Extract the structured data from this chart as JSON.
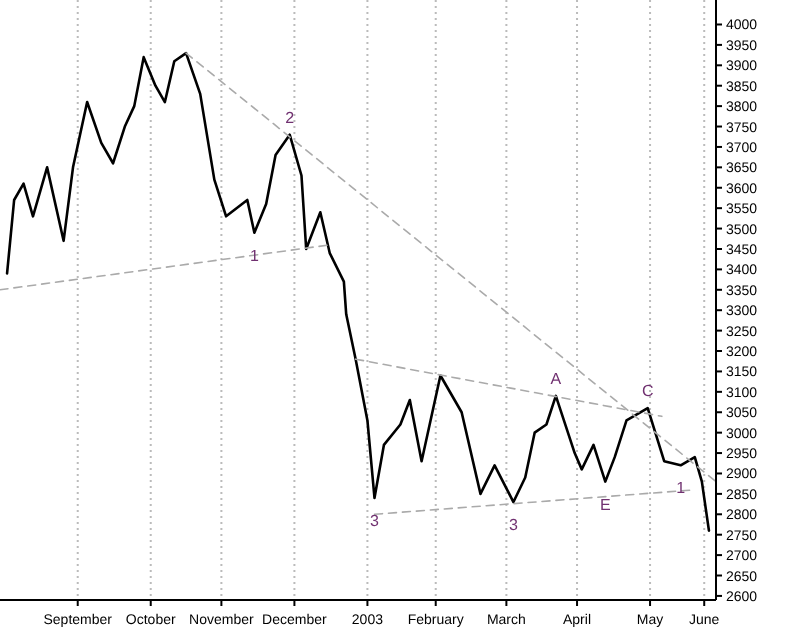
{
  "chart_data": {
    "type": "line",
    "xlim": [
      "2002-08-13",
      "2003-06-13"
    ],
    "ylim": [
      2590,
      4060
    ],
    "xticks": [
      {
        "value": "2002-09-15",
        "label": "September"
      },
      {
        "value": "2002-10-16",
        "label": "October"
      },
      {
        "value": "2002-11-15",
        "label": "November"
      },
      {
        "value": "2002-12-16",
        "label": "December"
      },
      {
        "value": "2003-01-16",
        "label": "2003"
      },
      {
        "value": "2003-02-14",
        "label": "February"
      },
      {
        "value": "2003-03-16",
        "label": "March"
      },
      {
        "value": "2003-04-15",
        "label": "April"
      },
      {
        "value": "2003-05-16",
        "label": "May"
      },
      {
        "value": "2003-06-08",
        "label": "June"
      }
    ],
    "yticks": [
      2600,
      2650,
      2700,
      2750,
      2800,
      2850,
      2900,
      2950,
      3000,
      3050,
      3100,
      3150,
      3200,
      3250,
      3300,
      3350,
      3400,
      3450,
      3500,
      3550,
      3600,
      3650,
      3700,
      3750,
      3800,
      3850,
      3900,
      3950,
      4000
    ],
    "grid": "x",
    "marker": "none",
    "series": [
      {
        "color": "#000000",
        "line_style": "solid",
        "x": [
          "2002-08-16",
          "2002-08-19",
          "2002-08-23",
          "2002-08-27",
          "2002-09-02",
          "2002-09-09",
          "2002-09-13",
          "2002-09-19",
          "2002-09-25",
          "2002-09-30",
          "2002-10-05",
          "2002-10-09",
          "2002-10-13",
          "2002-10-18",
          "2002-10-22",
          "2002-10-26",
          "2002-10-31",
          "2002-11-06",
          "2002-11-12",
          "2002-11-17",
          "2002-11-26",
          "2002-11-29",
          "2002-12-04",
          "2002-12-08",
          "2002-12-14",
          "2002-12-19",
          "2002-12-21",
          "2002-12-27",
          "2002-12-31",
          "2003-01-06",
          "2003-01-07",
          "2003-01-11",
          "2003-01-16",
          "2003-01-19",
          "2003-01-23",
          "2003-01-30",
          "2003-02-03",
          "2003-02-08",
          "2003-02-16",
          "2003-02-25",
          "2003-03-05",
          "2003-03-11",
          "2003-03-19",
          "2003-03-24",
          "2003-03-28",
          "2003-04-02",
          "2003-04-06",
          "2003-04-14",
          "2003-04-17",
          "2003-04-22",
          "2003-04-27",
          "2003-05-01",
          "2003-05-06",
          "2003-05-15",
          "2003-05-22",
          "2003-05-29",
          "2003-06-04",
          "2003-06-07",
          "2003-06-10"
        ],
        "values": [
          3390,
          3570,
          3610,
          3530,
          3650,
          3470,
          3650,
          3810,
          3710,
          3660,
          3750,
          3800,
          3920,
          3850,
          3810,
          3910,
          3930,
          3830,
          3620,
          3530,
          3570,
          3490,
          3560,
          3680,
          3730,
          3630,
          3450,
          3540,
          3440,
          3370,
          3290,
          3180,
          3030,
          2840,
          2970,
          3020,
          3080,
          2930,
          3140,
          3050,
          2850,
          2920,
          2830,
          2890,
          3000,
          3020,
          3090,
          2950,
          2910,
          2970,
          2880,
          2940,
          3030,
          3060,
          2930,
          2920,
          2940,
          2880,
          2760
        ]
      },
      {
        "color": "#aaaaaa",
        "line_style": "dashed",
        "x": [
          "2002-08-13",
          "2002-12-31"
        ],
        "values": [
          3350,
          3460
        ]
      },
      {
        "color": "#aaaaaa",
        "line_style": "dashed",
        "x": [
          "2002-10-31",
          "2003-06-13"
        ],
        "values": [
          3930,
          2880
        ]
      },
      {
        "color": "#aaaaaa",
        "line_style": "dashed",
        "x": [
          "2003-01-19",
          "2003-06-04"
        ],
        "values": [
          2800,
          2860
        ]
      },
      {
        "color": "#aaaaaa",
        "line_style": "dashed",
        "x": [
          "2003-01-11",
          "2003-05-21"
        ],
        "values": [
          3180,
          3040
        ]
      }
    ],
    "annotations": [
      {
        "text": "2",
        "x": "2002-12-14",
        "y": 3730
      },
      {
        "text": "1",
        "x": "2002-11-29",
        "y": 3490
      },
      {
        "text": "3",
        "x": "2003-01-19",
        "y": 2840
      },
      {
        "text": "A",
        "x": "2003-04-06",
        "y": 3090
      },
      {
        "text": "3",
        "x": "2003-03-19",
        "y": 2830
      },
      {
        "text": "E",
        "x": "2003-04-27",
        "y": 2880
      },
      {
        "text": "C",
        "x": "2003-05-15",
        "y": 3060
      },
      {
        "text": "1",
        "x": "2003-05-29",
        "y": 2920
      }
    ]
  }
}
